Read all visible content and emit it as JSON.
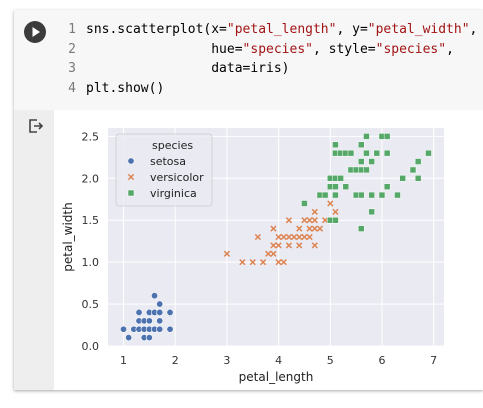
{
  "code": {
    "line_numbers": [
      "1",
      "2",
      "3",
      "4"
    ],
    "line1": {
      "a": "sns.scatterplot(x=",
      "b": "\"petal_length\"",
      "c": ", y=",
      "d": "\"petal_width\"",
      "e": ","
    },
    "line2": {
      "a": "                hue=",
      "b": "\"species\"",
      "c": ", style=",
      "d": "\"species\"",
      "e": ","
    },
    "line3": {
      "a": "                data=iris)"
    },
    "line4": {
      "a": "plt.show()"
    }
  },
  "icons": {
    "run": "play-circle-icon",
    "output": "output-redirect-icon"
  },
  "chart_data": {
    "type": "scatter",
    "xlabel": "petal_length",
    "ylabel": "petal_width",
    "xlim": [
      0.7,
      7.2
    ],
    "ylim": [
      0.0,
      2.6
    ],
    "xticks": [
      1,
      2,
      3,
      4,
      5,
      6,
      7
    ],
    "yticks": [
      0.0,
      0.5,
      1.0,
      1.5,
      2.0,
      2.5
    ],
    "grid": true,
    "background": "#eaeaf2",
    "legend": {
      "title": "species",
      "position": "top-left"
    },
    "series": [
      {
        "name": "setosa",
        "marker": "circle",
        "color": "#4c72b0",
        "points": [
          [
            1.0,
            0.2
          ],
          [
            1.1,
            0.1
          ],
          [
            1.2,
            0.2
          ],
          [
            1.3,
            0.2
          ],
          [
            1.3,
            0.3
          ],
          [
            1.3,
            0.4
          ],
          [
            1.4,
            0.1
          ],
          [
            1.4,
            0.2
          ],
          [
            1.4,
            0.3
          ],
          [
            1.5,
            0.1
          ],
          [
            1.5,
            0.2
          ],
          [
            1.5,
            0.3
          ],
          [
            1.5,
            0.4
          ],
          [
            1.6,
            0.2
          ],
          [
            1.6,
            0.4
          ],
          [
            1.6,
            0.6
          ],
          [
            1.7,
            0.2
          ],
          [
            1.7,
            0.3
          ],
          [
            1.7,
            0.4
          ],
          [
            1.7,
            0.5
          ],
          [
            1.9,
            0.2
          ],
          [
            1.9,
            0.4
          ]
        ]
      },
      {
        "name": "versicolor",
        "marker": "x",
        "color": "#dd8452",
        "points": [
          [
            3.0,
            1.1
          ],
          [
            3.3,
            1.0
          ],
          [
            3.5,
            1.0
          ],
          [
            3.6,
            1.3
          ],
          [
            3.7,
            1.0
          ],
          [
            3.8,
            1.1
          ],
          [
            3.9,
            1.1
          ],
          [
            3.9,
            1.2
          ],
          [
            3.9,
            1.4
          ],
          [
            4.0,
            1.0
          ],
          [
            4.0,
            1.2
          ],
          [
            4.0,
            1.3
          ],
          [
            4.1,
            1.0
          ],
          [
            4.1,
            1.3
          ],
          [
            4.2,
            1.2
          ],
          [
            4.2,
            1.3
          ],
          [
            4.2,
            1.5
          ],
          [
            4.3,
            1.3
          ],
          [
            4.4,
            1.2
          ],
          [
            4.4,
            1.3
          ],
          [
            4.4,
            1.4
          ],
          [
            4.5,
            1.3
          ],
          [
            4.5,
            1.5
          ],
          [
            4.6,
            1.3
          ],
          [
            4.6,
            1.4
          ],
          [
            4.6,
            1.5
          ],
          [
            4.7,
            1.2
          ],
          [
            4.7,
            1.4
          ],
          [
            4.7,
            1.5
          ],
          [
            4.7,
            1.6
          ],
          [
            4.8,
            1.4
          ],
          [
            4.8,
            1.8
          ],
          [
            4.9,
            1.5
          ],
          [
            5.0,
            1.7
          ],
          [
            5.1,
            1.6
          ]
        ]
      },
      {
        "name": "virginica",
        "marker": "square",
        "color": "#55a868",
        "points": [
          [
            4.5,
            1.7
          ],
          [
            4.8,
            1.8
          ],
          [
            4.9,
            1.8
          ],
          [
            5.0,
            1.5
          ],
          [
            5.0,
            1.9
          ],
          [
            5.0,
            2.0
          ],
          [
            5.1,
            1.5
          ],
          [
            5.1,
            1.8
          ],
          [
            5.1,
            1.9
          ],
          [
            5.1,
            2.0
          ],
          [
            5.1,
            2.3
          ],
          [
            5.1,
            2.4
          ],
          [
            5.2,
            2.0
          ],
          [
            5.2,
            2.3
          ],
          [
            5.3,
            1.9
          ],
          [
            5.3,
            2.3
          ],
          [
            5.4,
            2.1
          ],
          [
            5.4,
            2.3
          ],
          [
            5.5,
            1.8
          ],
          [
            5.5,
            2.1
          ],
          [
            5.6,
            1.4
          ],
          [
            5.6,
            1.8
          ],
          [
            5.6,
            2.1
          ],
          [
            5.6,
            2.2
          ],
          [
            5.6,
            2.4
          ],
          [
            5.7,
            2.1
          ],
          [
            5.7,
            2.3
          ],
          [
            5.7,
            2.5
          ],
          [
            5.8,
            1.6
          ],
          [
            5.8,
            1.8
          ],
          [
            5.8,
            2.2
          ],
          [
            5.9,
            2.3
          ],
          [
            6.0,
            1.8
          ],
          [
            6.0,
            2.5
          ],
          [
            6.1,
            1.9
          ],
          [
            6.1,
            2.3
          ],
          [
            6.1,
            2.5
          ],
          [
            6.3,
            1.8
          ],
          [
            6.4,
            2.0
          ],
          [
            6.6,
            2.1
          ],
          [
            6.7,
            2.0
          ],
          [
            6.7,
            2.2
          ],
          [
            6.9,
            2.3
          ]
        ]
      }
    ]
  }
}
